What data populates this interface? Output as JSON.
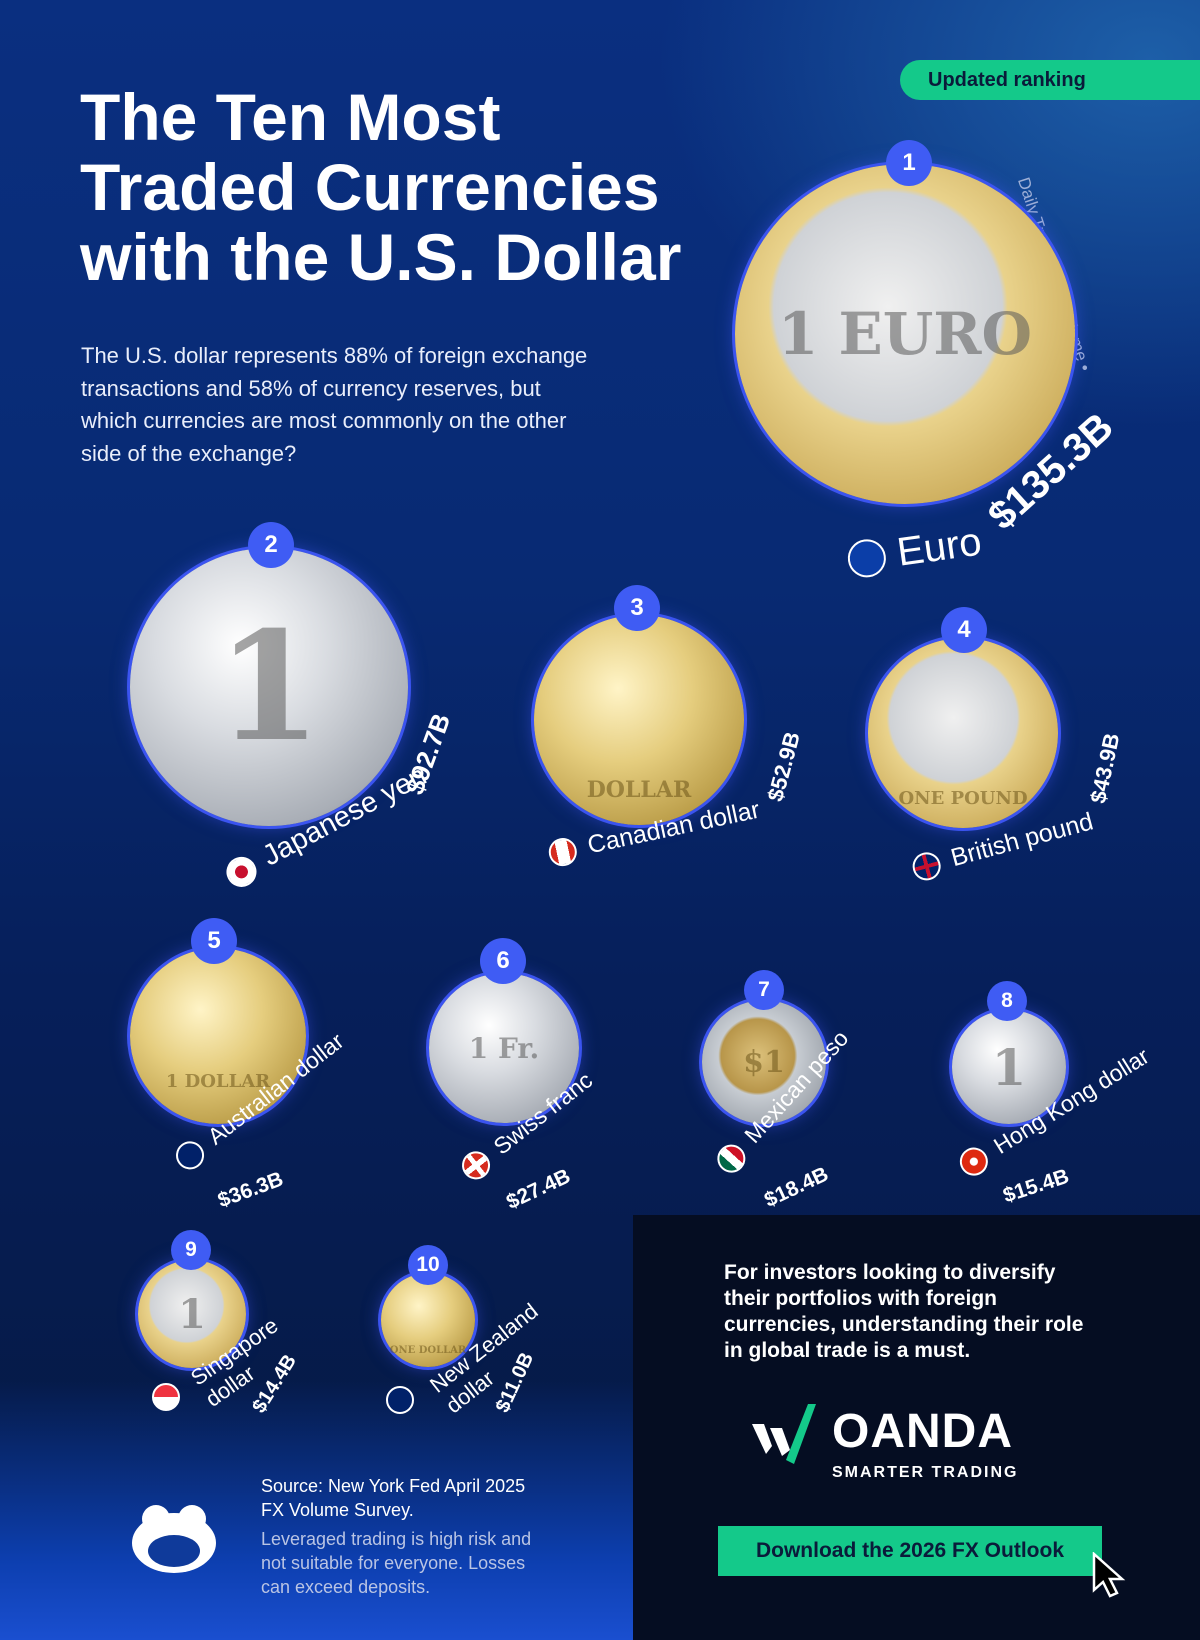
{
  "badge": "Updated ranking",
  "title": [
    "The Ten Most",
    "Traded Currencies",
    "with the U.S. Dollar"
  ],
  "intro": "The U.S. dollar represents 88% of foreign exchange transactions and 58% of currency reserves, but which currencies are most commonly on the other side of the exchange?",
  "axis_note": "Daily Transaction Volume",
  "currencies": [
    {
      "rank": "1",
      "name": "Euro",
      "amount": "$135.3B",
      "coin_text": "1 EURO"
    },
    {
      "rank": "2",
      "name": "Japanese yen",
      "amount": "$92.7B",
      "coin_text": "1"
    },
    {
      "rank": "3",
      "name": "Canadian dollar",
      "amount": "$52.9B",
      "coin_text": "DOLLAR"
    },
    {
      "rank": "4",
      "name": "British pound",
      "amount": "$43.9B",
      "coin_text": "ONE POUND"
    },
    {
      "rank": "5",
      "name": "Australian dollar",
      "amount": "$36.3B",
      "coin_text": "1 DOLLAR"
    },
    {
      "rank": "6",
      "name": "Swiss franc",
      "amount": "$27.4B",
      "coin_text": "1 Fr."
    },
    {
      "rank": "7",
      "name": "Mexican peso",
      "amount": "$18.4B",
      "coin_text": "$1"
    },
    {
      "rank": "8",
      "name": "Hong Kong dollar",
      "amount": "$15.4B",
      "coin_text": "1"
    },
    {
      "rank": "9",
      "name_lines": [
        "Singapore",
        "dollar"
      ],
      "amount": "$14.4B",
      "coin_text": "1"
    },
    {
      "rank": "10",
      "name_lines": [
        "New Zealand",
        "dollar"
      ],
      "amount": "$11.0B",
      "coin_text": "ONE DOLLAR"
    }
  ],
  "closing": "For investors looking to diversify their portfolios with foreign currencies, understanding their role in global trade is a must.",
  "brand": {
    "name": "OANDA",
    "tagline": "SMARTER TRADING"
  },
  "cta": "Download the 2026 FX Outlook",
  "source": "Source: New York Fed April 2025 FX Volume Survey.",
  "disclaimer": "Leveraged trading is high risk and not suitable for everyone. Losses can exceed deposits.",
  "colors": {
    "accent_green": "#14c98a",
    "badge_blue": "#3f5cf4",
    "background": "#0a2f80"
  }
}
